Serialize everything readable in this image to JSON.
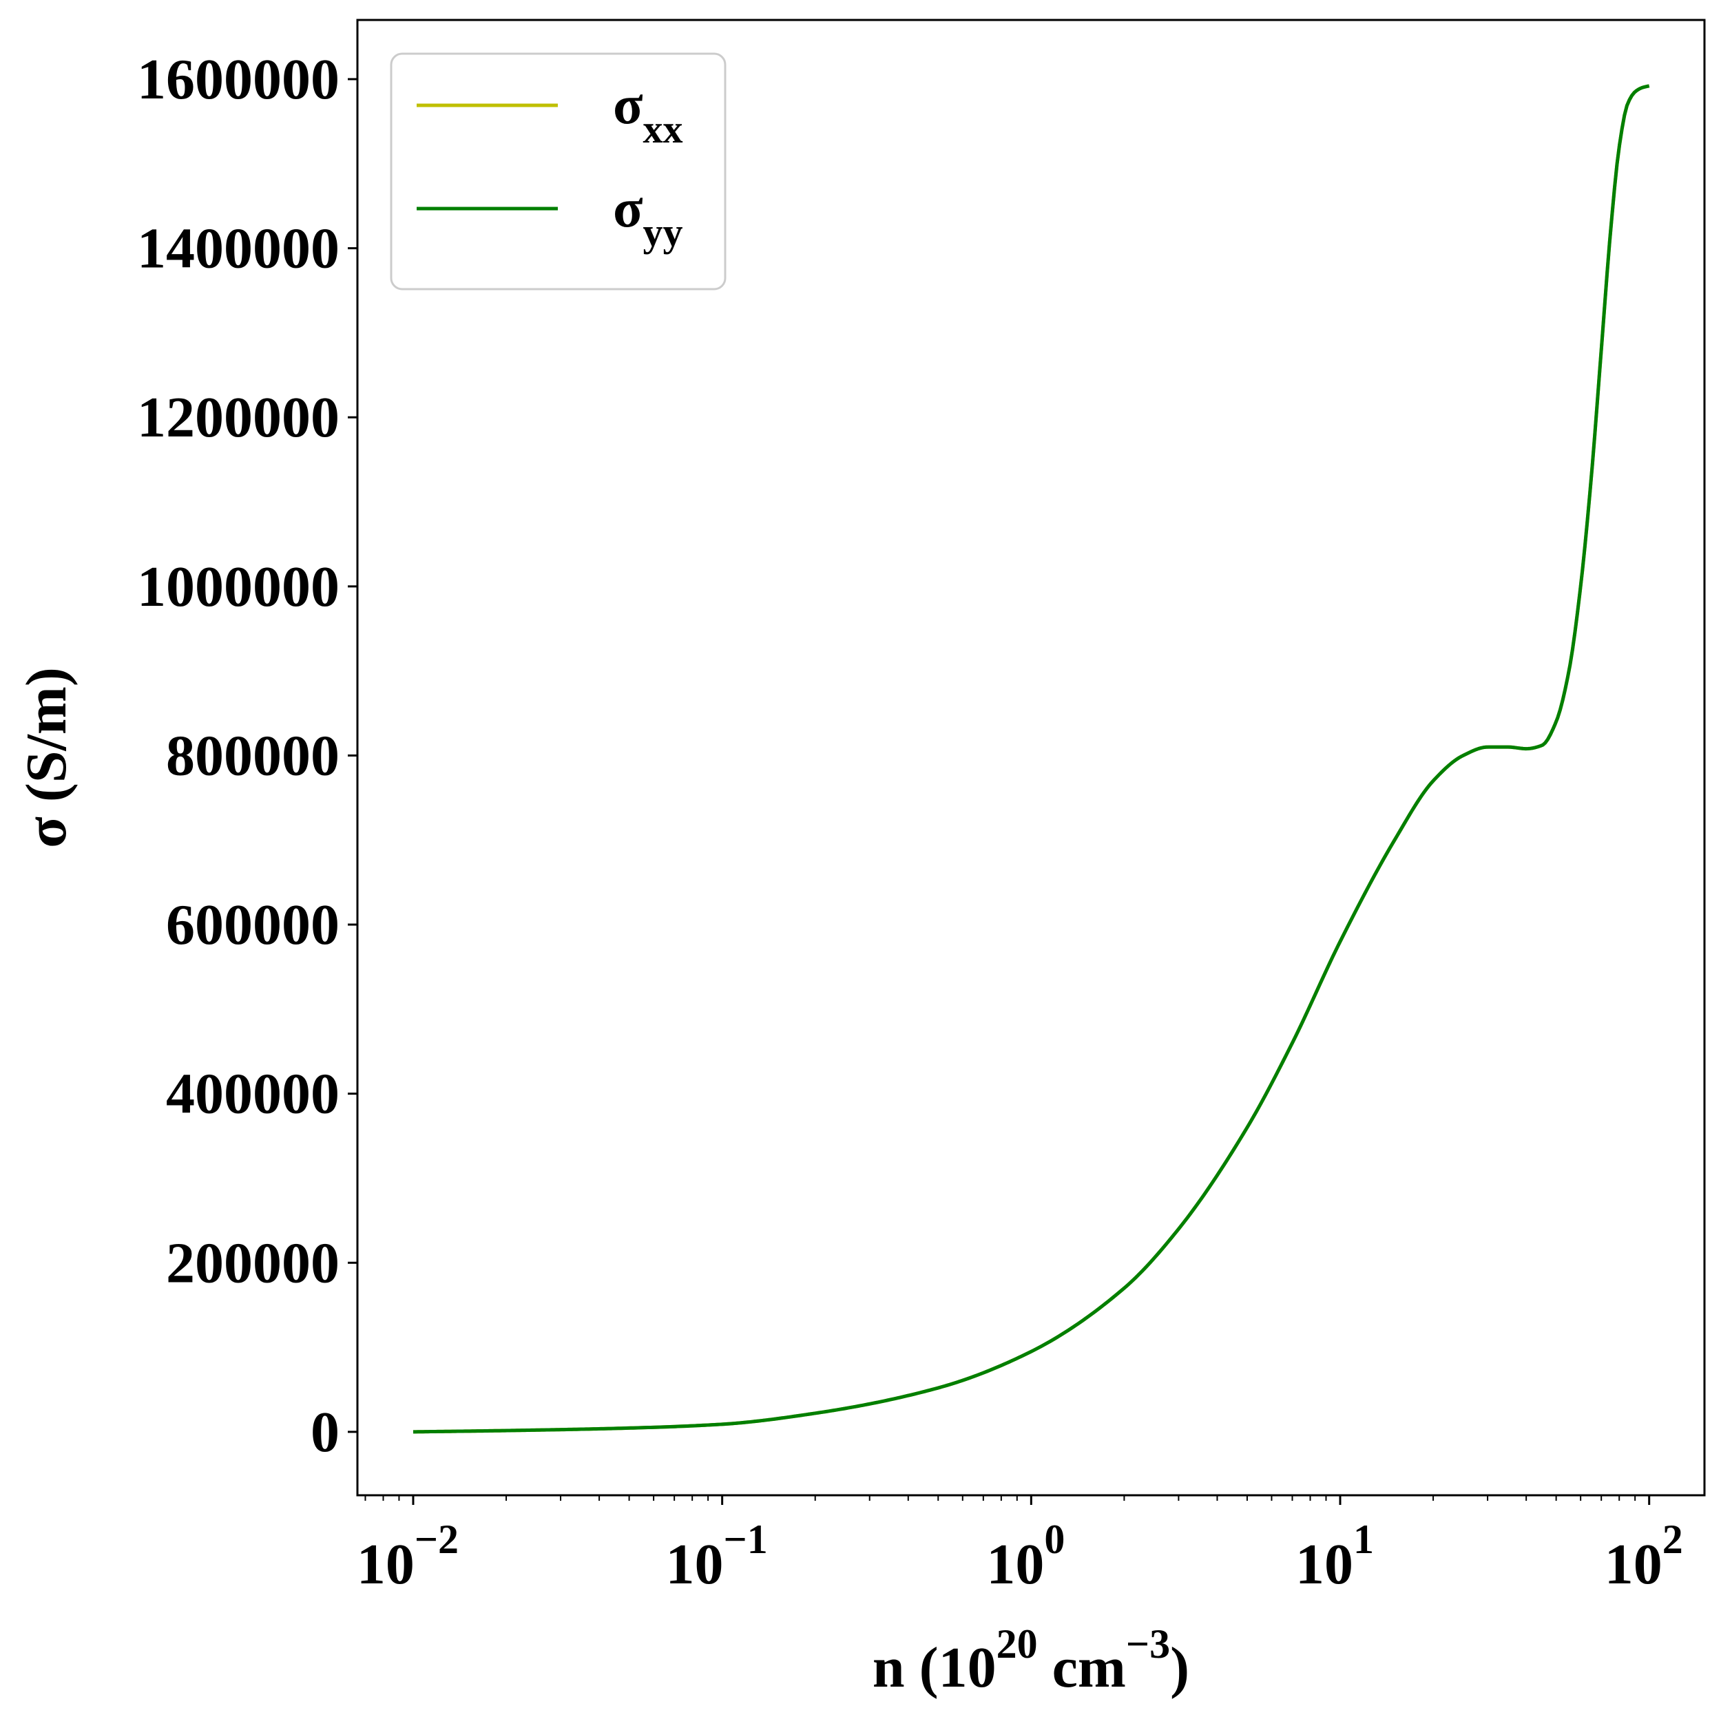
{
  "chart_data": {
    "type": "line",
    "title": "",
    "xlabel": "n (10^20 cm^-3)",
    "xlabel_parts": {
      "prefix": "n (10",
      "exp1": "20",
      "middle": " cm",
      "exp2": "−3",
      "suffix": ")"
    },
    "ylabel": "σ (S/m)",
    "xscale": "log",
    "xlim": [
      0.0066,
      151
    ],
    "ylim": [
      -75000,
      1670000
    ],
    "x_ticks": [
      {
        "value": 0.01,
        "base": "10",
        "exp": "−2"
      },
      {
        "value": 0.1,
        "base": "10",
        "exp": "−1"
      },
      {
        "value": 1,
        "base": "10",
        "exp": "0"
      },
      {
        "value": 10,
        "base": "10",
        "exp": "1"
      },
      {
        "value": 100,
        "base": "10",
        "exp": "2"
      }
    ],
    "y_ticks": [
      0,
      200000,
      400000,
      600000,
      800000,
      1000000,
      1200000,
      1400000,
      1600000
    ],
    "y_tick_labels": [
      "0",
      "200000",
      "400000",
      "600000",
      "800000",
      "1000000",
      "1200000",
      "1400000",
      "1600000"
    ],
    "grid": false,
    "legend": {
      "position": "top-left"
    },
    "series": [
      {
        "name": "σxx",
        "label_base": "σ",
        "label_sub": "xx",
        "color": "#bfbf00",
        "x": [
          0.01,
          0.02,
          0.05,
          0.1,
          0.2,
          0.5,
          1,
          2,
          3,
          5,
          7,
          10,
          15,
          20,
          25,
          30,
          35,
          40,
          45,
          50,
          55,
          60,
          65,
          70,
          75,
          80,
          85,
          90,
          95,
          100
        ],
        "y": [
          0,
          1500,
          4500,
          9000,
          22000,
          52000,
          95000,
          170000,
          240000,
          360000,
          460000,
          580000,
          700000,
          770000,
          800000,
          810000,
          810000,
          808000,
          812000,
          840000,
          900000,
          1000000,
          1130000,
          1280000,
          1420000,
          1520000,
          1570000,
          1585000,
          1590000,
          1592000
        ]
      },
      {
        "name": "σyy",
        "label_base": "σ",
        "label_sub": "yy",
        "color": "#007f00",
        "x": [
          0.01,
          0.02,
          0.05,
          0.1,
          0.2,
          0.5,
          1,
          2,
          3,
          5,
          7,
          10,
          15,
          20,
          25,
          30,
          35,
          40,
          45,
          50,
          55,
          60,
          65,
          70,
          75,
          80,
          85,
          90,
          95,
          100
        ],
        "y": [
          0,
          1500,
          4500,
          9000,
          22000,
          52000,
          95000,
          170000,
          240000,
          360000,
          460000,
          580000,
          700000,
          770000,
          800000,
          810000,
          810000,
          808000,
          812000,
          840000,
          900000,
          1000000,
          1130000,
          1280000,
          1420000,
          1520000,
          1570000,
          1585000,
          1590000,
          1592000
        ]
      }
    ]
  }
}
